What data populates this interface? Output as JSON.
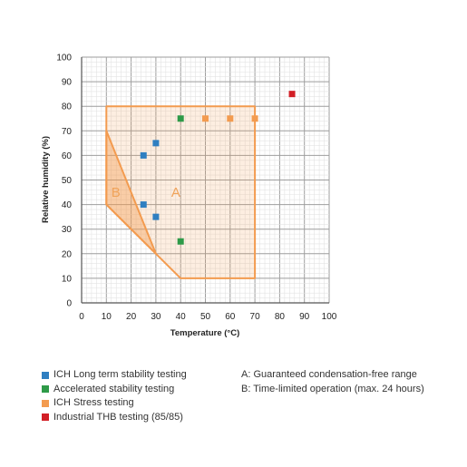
{
  "chart_data": {
    "type": "scatter",
    "xlabel": "Temperature (°C)",
    "ylabel": "Relative humidity (%)",
    "xlim": [
      0,
      100
    ],
    "ylim": [
      0,
      100
    ],
    "xticks": [
      0,
      10,
      20,
      30,
      40,
      50,
      60,
      70,
      80,
      90,
      100
    ],
    "yticks": [
      0,
      10,
      20,
      30,
      40,
      50,
      60,
      70,
      80,
      90,
      100
    ],
    "grid": true,
    "regions": [
      {
        "label": "A",
        "color": "#f39b4f",
        "polygon": [
          [
            10,
            80
          ],
          [
            70,
            80
          ],
          [
            70,
            10
          ],
          [
            40,
            10
          ],
          [
            30,
            20
          ],
          [
            10,
            40
          ]
        ]
      },
      {
        "label": "B",
        "color": "#f39b4f",
        "polygon": [
          [
            10,
            70
          ],
          [
            10,
            40
          ],
          [
            30,
            20
          ]
        ]
      }
    ],
    "series": [
      {
        "name": "ICH Long term stability testing",
        "color": "#2f7fc1",
        "points": [
          [
            25,
            60
          ],
          [
            30,
            65
          ],
          [
            25,
            40
          ],
          [
            30,
            35
          ]
        ]
      },
      {
        "name": "Accelerated stability testing",
        "color": "#2e9a48",
        "points": [
          [
            40,
            75
          ],
          [
            40,
            25
          ]
        ]
      },
      {
        "name": "ICH Stress testing",
        "color": "#f39b4f",
        "points": [
          [
            50,
            75
          ],
          [
            60,
            75
          ],
          [
            70,
            75
          ]
        ]
      },
      {
        "name": "Industrial THB testing (85/85)",
        "color": "#d21f26",
        "points": [
          [
            85,
            85
          ]
        ]
      }
    ],
    "notes": [
      "A: Guaranteed condensation-free range",
      "B: Time-limited operation (max. 24 hours)"
    ]
  }
}
